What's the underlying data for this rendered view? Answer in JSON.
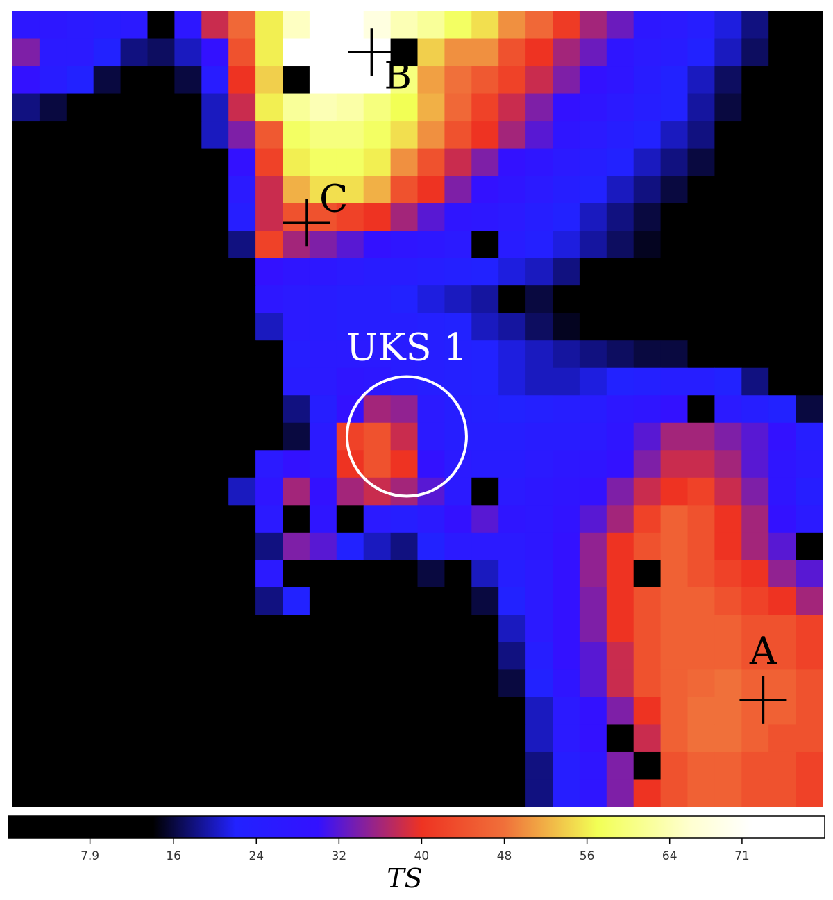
{
  "chart_data": {
    "type": "heatmap",
    "grid": {
      "cols": 30,
      "rows": 29
    },
    "colorbar": {
      "label": "TS",
      "range": [
        0,
        79
      ],
      "ticks": [
        7.9,
        16,
        24,
        32,
        40,
        48,
        56,
        64,
        71
      ],
      "tick_labels": [
        "7.9",
        "16",
        "24",
        "32",
        "40",
        "48",
        "56",
        "64",
        "71"
      ],
      "colormap": [
        {
          "v": 0,
          "color": "#000000"
        },
        {
          "v": 14,
          "color": "#000000"
        },
        {
          "v": 22,
          "color": "#2222ff"
        },
        {
          "v": 30,
          "color": "#3311ff"
        },
        {
          "v": 40,
          "color": "#ee3322"
        },
        {
          "v": 48,
          "color": "#f0703a"
        },
        {
          "v": 57,
          "color": "#f2ff55"
        },
        {
          "v": 66,
          "color": "#ffffd0"
        },
        {
          "v": 72,
          "color": "#ffffff"
        },
        {
          "v": 79,
          "color": "#ffffff"
        }
      ]
    },
    "ts_map": [
      [
        27,
        27,
        26,
        25,
        26,
        0,
        27,
        38,
        47,
        56,
        65,
        79,
        79,
        68,
        64,
        62,
        58,
        55,
        50,
        47,
        41,
        36,
        33,
        27,
        26,
        24,
        21,
        18,
        12,
        8
      ],
      [
        34,
        26,
        26,
        22,
        18,
        17,
        20,
        30,
        44,
        56,
        72,
        79,
        79,
        79,
        0,
        54,
        50,
        50,
        44,
        40,
        36,
        33,
        28,
        26,
        25,
        22,
        20,
        17,
        12,
        8
      ],
      [
        30,
        25,
        22,
        16,
        12,
        8,
        16,
        25,
        40,
        54,
        0,
        79,
        79,
        79,
        60,
        51,
        48,
        45,
        42,
        38,
        34,
        30,
        28,
        25,
        22,
        20,
        17,
        14,
        10,
        6
      ],
      [
        18,
        16,
        12,
        10,
        8,
        6,
        8,
        20,
        38,
        56,
        62,
        64,
        63,
        60,
        57,
        52,
        47,
        42,
        38,
        34,
        30,
        28,
        26,
        24,
        22,
        19,
        16,
        12,
        8,
        5
      ],
      [
        6,
        5,
        4,
        4,
        4,
        3,
        10,
        20,
        34,
        45,
        58,
        60,
        60,
        58,
        55,
        50,
        44,
        40,
        36,
        32,
        28,
        26,
        24,
        22,
        20,
        18,
        14,
        10,
        7,
        4
      ],
      [
        4,
        4,
        3,
        3,
        3,
        2,
        8,
        14,
        30,
        42,
        56,
        58,
        58,
        56,
        50,
        44,
        38,
        34,
        30,
        28,
        26,
        24,
        22,
        20,
        18,
        16,
        13,
        10,
        7,
        4
      ],
      [
        3,
        3,
        3,
        3,
        2,
        2,
        6,
        12,
        26,
        38,
        52,
        55,
        55,
        52,
        44,
        40,
        34,
        30,
        28,
        26,
        24,
        22,
        20,
        18,
        16,
        14,
        10,
        7,
        4,
        3
      ],
      [
        3,
        3,
        3,
        2,
        2,
        2,
        5,
        10,
        24,
        38,
        44,
        44,
        42,
        40,
        36,
        32,
        28,
        27,
        26,
        24,
        22,
        20,
        18,
        16,
        14,
        11,
        8,
        5,
        3,
        2
      ],
      [
        2,
        2,
        2,
        2,
        2,
        2,
        4,
        8,
        18,
        42,
        36,
        34,
        32,
        30,
        28,
        27,
        26,
        0,
        25,
        23,
        21,
        19,
        17,
        15,
        13,
        10,
        7,
        4,
        3,
        2
      ],
      [
        2,
        2,
        2,
        2,
        2,
        2,
        3,
        6,
        14,
        30,
        28,
        27,
        26,
        25,
        25,
        24,
        23,
        22,
        21,
        20,
        18,
        0,
        14,
        13,
        11,
        9,
        6,
        4,
        2,
        2
      ],
      [
        2,
        2,
        2,
        2,
        2,
        10,
        3,
        4,
        10,
        27,
        26,
        25,
        24,
        24,
        22,
        21,
        20,
        19,
        0,
        16,
        14,
        13,
        12,
        11,
        10,
        8,
        6,
        4,
        2,
        2
      ],
      [
        2,
        2,
        2,
        2,
        2,
        2,
        4,
        4,
        12,
        20,
        26,
        25,
        24,
        24,
        24,
        23,
        22,
        20,
        19,
        17,
        15,
        14,
        13,
        12,
        11,
        9,
        6,
        4,
        2,
        2
      ],
      [
        2,
        2,
        2,
        2,
        2,
        2,
        3,
        5,
        10,
        14,
        24,
        26,
        26,
        26,
        25,
        24,
        23,
        22,
        21,
        20,
        19,
        18,
        17,
        16,
        16,
        14,
        12,
        8,
        4,
        2
      ],
      [
        2,
        2,
        2,
        2,
        2,
        3,
        3,
        6,
        8,
        12,
        25,
        26,
        28,
        27,
        25,
        24,
        23,
        22,
        21,
        20,
        20,
        21,
        22,
        23,
        24,
        24,
        22,
        18,
        12,
        8
      ],
      [
        2,
        2,
        2,
        2,
        2,
        2,
        2,
        6,
        8,
        12,
        18,
        24,
        30,
        36,
        35,
        26,
        24,
        23,
        22,
        23,
        24,
        25,
        27,
        28,
        30,
        0,
        26,
        24,
        22,
        16
      ],
      [
        2,
        2,
        2,
        2,
        2,
        2,
        2,
        3,
        8,
        7,
        16,
        26,
        42,
        44,
        38,
        26,
        24,
        24,
        24,
        25,
        25,
        26,
        28,
        32,
        36,
        36,
        34,
        32,
        30,
        24
      ],
      [
        2,
        2,
        2,
        2,
        2,
        2,
        2,
        3,
        12,
        26,
        30,
        26,
        40,
        44,
        40,
        30,
        26,
        25,
        25,
        26,
        27,
        28,
        30,
        34,
        38,
        38,
        36,
        32,
        28,
        26
      ],
      [
        2,
        2,
        2,
        2,
        2,
        2,
        2,
        4,
        20,
        28,
        36,
        30,
        36,
        38,
        36,
        32,
        26,
        0,
        26,
        27,
        28,
        30,
        34,
        38,
        40,
        42,
        38,
        34,
        28,
        24
      ],
      [
        2,
        2,
        2,
        2,
        2,
        2,
        2,
        3,
        10,
        26,
        0,
        28,
        0,
        26,
        24,
        26,
        30,
        32,
        28,
        27,
        29,
        32,
        36,
        42,
        46,
        44,
        40,
        36,
        30,
        26
      ],
      [
        2,
        2,
        2,
        2,
        2,
        2,
        2,
        3,
        8,
        18,
        34,
        32,
        22,
        20,
        18,
        22,
        26,
        26,
        26,
        27,
        30,
        35,
        40,
        44,
        46,
        44,
        40,
        36,
        32,
        0
      ],
      [
        2,
        2,
        2,
        2,
        2,
        2,
        2,
        2,
        3,
        26,
        0,
        14,
        10,
        10,
        10,
        16,
        0,
        20,
        24,
        26,
        30,
        35,
        40,
        0,
        46,
        44,
        42,
        40,
        35,
        32
      ],
      [
        2,
        2,
        2,
        2,
        2,
        2,
        2,
        2,
        2,
        18,
        22,
        8,
        6,
        6,
        5,
        8,
        12,
        16,
        22,
        26,
        30,
        34,
        40,
        44,
        46,
        46,
        44,
        42,
        40,
        36
      ],
      [
        2,
        2,
        2,
        2,
        2,
        2,
        2,
        2,
        2,
        2,
        2,
        4,
        4,
        4,
        3,
        6,
        10,
        14,
        20,
        26,
        30,
        34,
        40,
        44,
        46,
        46,
        46,
        44,
        44,
        42
      ],
      [
        2,
        2,
        2,
        2,
        2,
        2,
        2,
        2,
        2,
        2,
        2,
        2,
        2,
        3,
        3,
        3,
        6,
        12,
        18,
        24,
        30,
        32,
        38,
        44,
        46,
        46,
        46,
        44,
        44,
        42
      ],
      [
        2,
        2,
        2,
        2,
        2,
        2,
        2,
        2,
        2,
        2,
        2,
        2,
        2,
        3,
        2,
        2,
        5,
        10,
        16,
        22,
        28,
        32,
        38,
        44,
        46,
        47,
        48,
        46,
        46,
        44
      ],
      [
        2,
        2,
        2,
        2,
        2,
        2,
        2,
        2,
        2,
        2,
        2,
        2,
        2,
        3,
        3,
        3,
        4,
        8,
        14,
        20,
        26,
        30,
        34,
        40,
        46,
        48,
        48,
        46,
        46,
        44
      ],
      [
        2,
        2,
        2,
        2,
        2,
        2,
        2,
        2,
        2,
        2,
        2,
        2,
        2,
        3,
        3,
        3,
        4,
        8,
        14,
        20,
        26,
        30,
        0,
        38,
        46,
        48,
        48,
        46,
        44,
        44
      ],
      [
        2,
        2,
        2,
        2,
        2,
        2,
        2,
        2,
        2,
        2,
        2,
        2,
        2,
        3,
        3,
        3,
        4,
        8,
        12,
        18,
        24,
        28,
        34,
        0,
        44,
        46,
        46,
        44,
        44,
        42
      ],
      [
        2,
        2,
        2,
        2,
        2,
        2,
        2,
        2,
        2,
        2,
        2,
        2,
        2,
        3,
        3,
        3,
        2,
        8,
        12,
        18,
        24,
        28,
        34,
        40,
        44,
        46,
        46,
        44,
        44,
        42
      ]
    ],
    "annotations": [
      {
        "label": "B",
        "marker": "cross",
        "col": 12.8,
        "row": 1.0
      },
      {
        "label": "C",
        "marker": "cross",
        "col": 10.4,
        "row": 7.2
      },
      {
        "label": "A",
        "marker": "cross",
        "col": 27.3,
        "row": 24.6
      }
    ],
    "highlight": {
      "label": "UKS 1",
      "marker": "circle",
      "col": 14.1,
      "row": 15.0
    }
  }
}
